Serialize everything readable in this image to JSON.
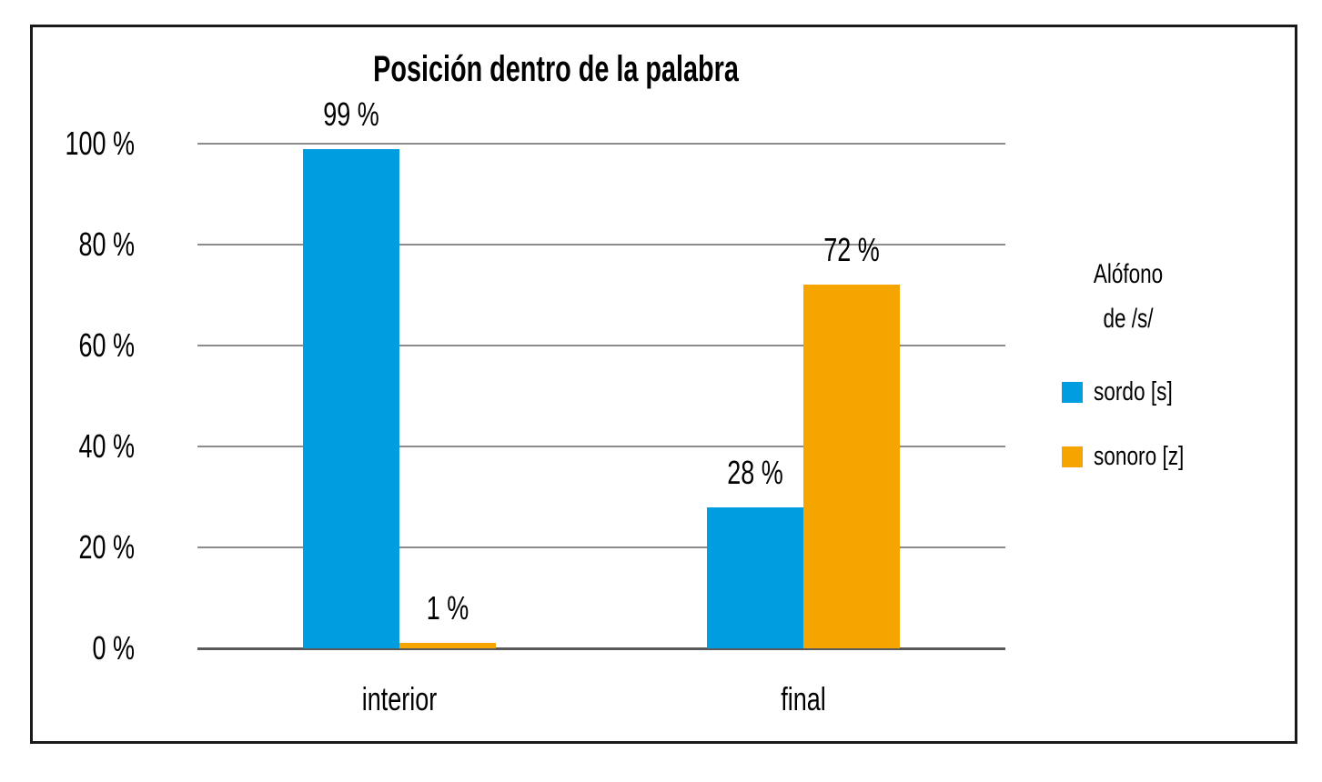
{
  "chart_data": {
    "type": "bar",
    "title": "Posición dentro de la palabra",
    "categories": [
      "interior",
      "final"
    ],
    "series": [
      {
        "name": "sordo [s]",
        "slug": "sordo",
        "color": "#009EE0",
        "values": [
          99,
          28
        ]
      },
      {
        "name": "sonoro [z]",
        "slug": "sonoro",
        "color": "#F6A500",
        "values": [
          1,
          72
        ]
      }
    ],
    "legend_title_lines": [
      "Alófono",
      "de /s/"
    ],
    "legend_position": "right",
    "value_suffix": " %",
    "ylim": [
      0,
      100
    ],
    "ytick_step": 20,
    "ytick_labels": [
      "0 %",
      "20 %",
      "40 %",
      "60 %",
      "80 %",
      "100 %"
    ],
    "data_labels": {
      "interior": [
        "99 %",
        "1 %"
      ],
      "final": [
        "28 %",
        "72 %"
      ]
    },
    "xlabel": "",
    "ylabel": "",
    "grid": "horizontal"
  },
  "colors": {
    "gridline": "#8C8C8C",
    "axis_line": "#595959",
    "frame_border": "#1A1A1A",
    "background": "#FFFFFF",
    "text": "#000000"
  }
}
